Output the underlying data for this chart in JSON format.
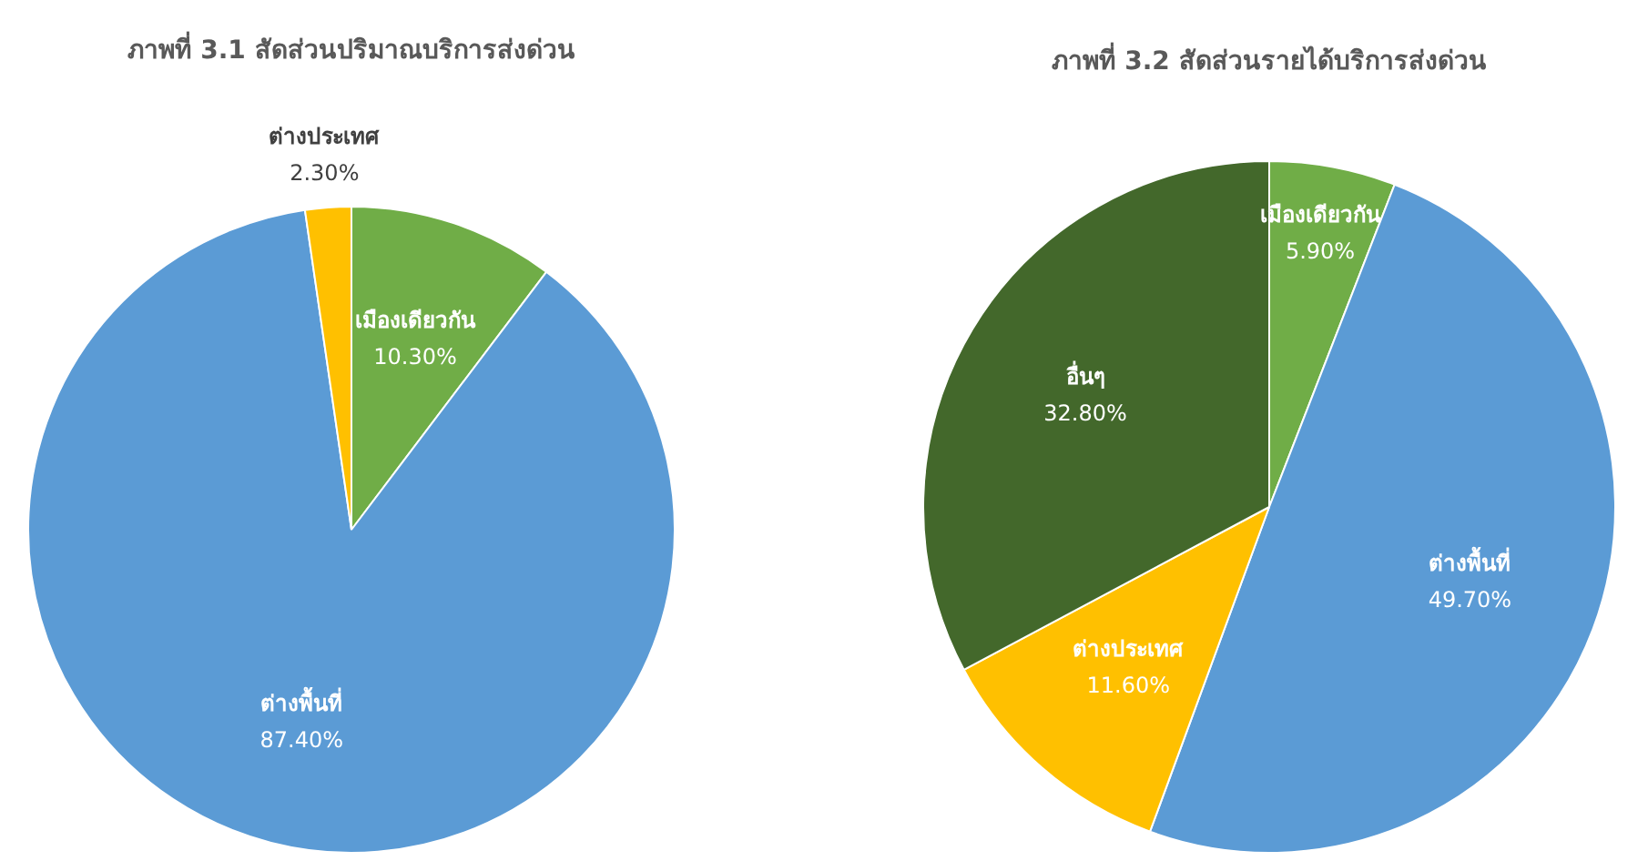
{
  "chart_data": [
    {
      "type": "pie",
      "title": "ภาพที่ 3.1 สัดส่วนปริมาณบริการส่งด่วน",
      "categories": [
        "เมืองเดียวกัน",
        "ต่างพื้นที่",
        "ต่างประเทศ"
      ],
      "values": [
        10.3,
        87.4,
        2.3
      ],
      "colors": [
        "#70ad47",
        "#5b9bd5",
        "#ffc000"
      ],
      "value_labels": [
        "10.30%",
        "87.40%",
        "2.30%"
      ]
    },
    {
      "type": "pie",
      "title": "ภาพที่ 3.2 สัดส่วนรายได้บริการส่งด่วน",
      "categories": [
        "เมืองเดียวกัน",
        "ต่างพื้นที่",
        "ต่างประเทศ",
        "อื่นๆ"
      ],
      "values": [
        5.9,
        49.7,
        11.6,
        32.8
      ],
      "colors": [
        "#70ad47",
        "#5b9bd5",
        "#ffc000",
        "#43682b"
      ],
      "value_labels": [
        "5.90%",
        "49.70%",
        "11.60%",
        "32.80%"
      ]
    }
  ]
}
